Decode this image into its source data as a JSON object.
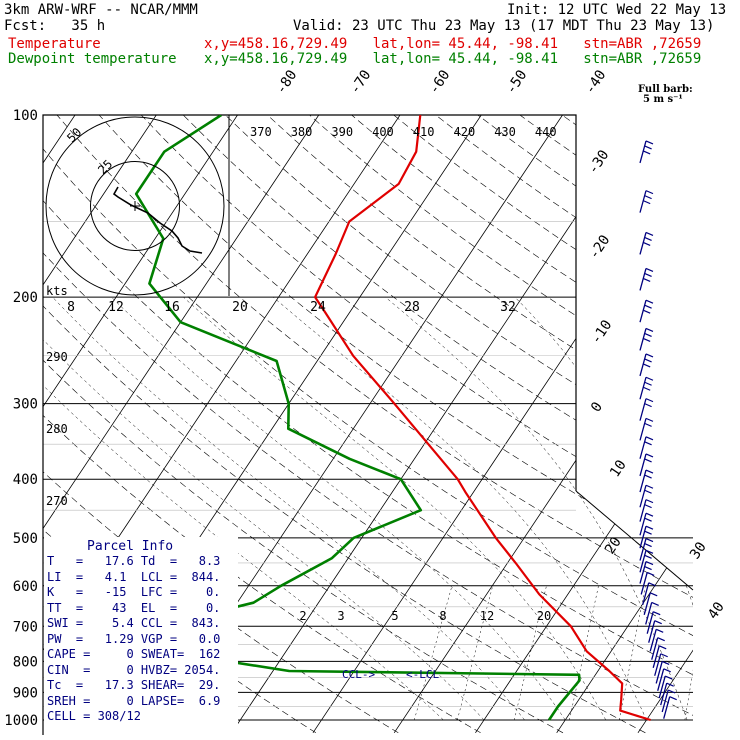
{
  "header": {
    "model": "3km ARW-WRF -- NCAR/MMM",
    "init": "Init: 12 UTC Wed 22 May 13",
    "fcst": "Fcst:   35 h",
    "valid": "Valid: 23 UTC Thu 23 May 13 (17 MDT Thu 23 May 13)",
    "temp_label": "Temperature",
    "dew_label": "Dewpoint temperature",
    "temp_info": "x,y=458.16,729.49   lat,lon= 45.44, -98.41   stn=ABR ,72659",
    "dew_info": "x,y=458.16,729.49   lat,lon= 45.44, -98.41   stn=ABR ,72659"
  },
  "colors": {
    "temperature": "#e00000",
    "dewpoint": "#008000",
    "barbs": "#000080",
    "parcel": "#000080"
  },
  "barb_legend": {
    "line1": "Full barb:",
    "line2": "5 m s⁻¹"
  },
  "hodograph": {
    "kts_label": "kts",
    "ring_labels": [
      "50",
      "25"
    ]
  },
  "parcel_info": {
    "title": "Parcel Info",
    "rows": [
      "T   =   17.6 Td  =   8.3",
      "LI  =   4.1  LCL =  844.",
      "K   =   -15  LFC =    0.",
      "TT  =    43  EL  =    0.",
      "SWI =    5.4 CCL =  843.",
      "PW  =   1.29 VGP =   0.0",
      "CAPE =     0 SWEAT=  162",
      "CIN  =     0 HVBZ= 2054.",
      "Tc  =   17.3 SHEAR=  29.",
      "SREH =     0 LAPSE=  6.9",
      "CELL = 308/12"
    ]
  },
  "annotations": {
    "ccl": "CCL->",
    "lcl": "<-LCL"
  },
  "chart_data": {
    "type": "skew-t",
    "y_axis": {
      "label_values": [
        "100",
        "200",
        "300",
        "400",
        "500",
        "600",
        "700",
        "800",
        "900",
        "1000"
      ]
    },
    "isotherm_labels": [
      "-80",
      "-70",
      "-60",
      "-50",
      "-40",
      "-30",
      "-20",
      "-10",
      "0",
      "10",
      "20",
      "30",
      "40"
    ],
    "theta_labels_top": [
      "370",
      "380",
      "390",
      "400",
      "410",
      "420",
      "430",
      "440"
    ],
    "theta_labels_left": [
      "290",
      "280",
      "270"
    ],
    "hodograph_speed_labels": [
      "8",
      "12",
      "16",
      "20",
      "24",
      "28",
      "32"
    ],
    "mixing_ratio_labels": [
      "2",
      "3",
      "5",
      "8",
      "12",
      "20"
    ],
    "temperature_profile": [
      {
        "p": 1000,
        "t": 20.5
      },
      {
        "p": 965,
        "t": 16.0
      },
      {
        "p": 925,
        "t": 15.2
      },
      {
        "p": 870,
        "t": 14.0
      },
      {
        "p": 830,
        "t": 11.4
      },
      {
        "p": 770,
        "t": 7.0
      },
      {
        "p": 700,
        "t": 3.0
      },
      {
        "p": 620,
        "t": -3.5
      },
      {
        "p": 550,
        "t": -9.0
      },
      {
        "p": 500,
        "t": -13.5
      },
      {
        "p": 420,
        "t": -21.0
      },
      {
        "p": 400,
        "t": -23.0
      },
      {
        "p": 300,
        "t": -37.0
      },
      {
        "p": 250,
        "t": -46.0
      },
      {
        "p": 212,
        "t": -53.0
      },
      {
        "p": 200,
        "t": -55.5
      },
      {
        "p": 170,
        "t": -56.5
      },
      {
        "p": 150,
        "t": -57.5
      },
      {
        "p": 130,
        "t": -54.5
      },
      {
        "p": 115,
        "t": -55.0
      },
      {
        "p": 100,
        "t": -57.5
      }
    ],
    "dewpoint_profile": [
      {
        "p": 1000,
        "t": 8.0
      },
      {
        "p": 950,
        "t": 8.0
      },
      {
        "p": 860,
        "t": 8.5
      },
      {
        "p": 842,
        "t": 8.0
      },
      {
        "p": 830,
        "t": -28.0
      },
      {
        "p": 760,
        "t": -48.0
      },
      {
        "p": 700,
        "t": -48.0
      },
      {
        "p": 640,
        "t": -38.0
      },
      {
        "p": 600,
        "t": -36.0
      },
      {
        "p": 540,
        "t": -32.0
      },
      {
        "p": 500,
        "t": -31.0
      },
      {
        "p": 450,
        "t": -25.0
      },
      {
        "p": 400,
        "t": -30.0
      },
      {
        "p": 370,
        "t": -38.0
      },
      {
        "p": 330,
        "t": -48.0
      },
      {
        "p": 300,
        "t": -50.0
      },
      {
        "p": 255,
        "t": -55.0
      },
      {
        "p": 220,
        "t": -70.0
      },
      {
        "p": 190,
        "t": -77.0
      },
      {
        "p": 160,
        "t": -79.0
      },
      {
        "p": 135,
        "t": -86.0
      },
      {
        "p": 115,
        "t": -86.0
      },
      {
        "p": 100,
        "t": -82.0
      }
    ]
  }
}
